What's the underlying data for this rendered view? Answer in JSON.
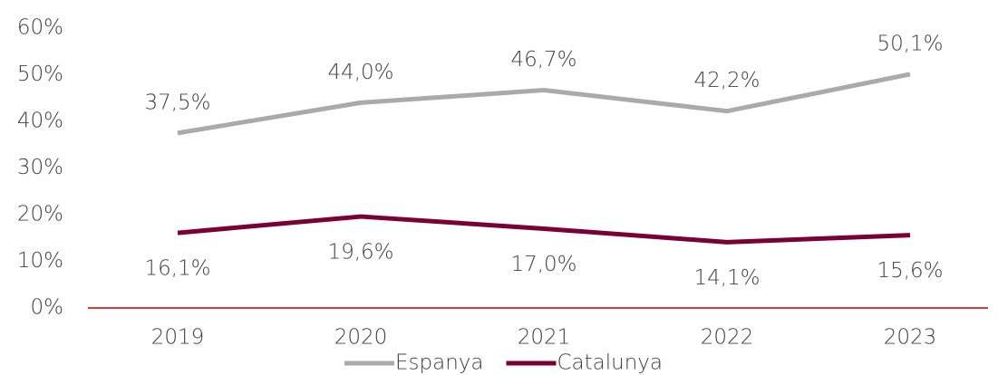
{
  "chart_data": {
    "type": "line",
    "categories": [
      "2019",
      "2020",
      "2021",
      "2022",
      "2023"
    ],
    "series": [
      {
        "name": "Espanya",
        "color": "#aaaaaa",
        "values": [
          37.5,
          44.0,
          46.7,
          42.2,
          50.1
        ],
        "value_labels": [
          "37,5%",
          "44,0%",
          "46,7%",
          "42,2%",
          "50,1%"
        ]
      },
      {
        "name": "Catalunya",
        "color": "#7a0035",
        "values": [
          16.1,
          19.6,
          17.0,
          14.1,
          15.6
        ],
        "value_labels": [
          "16,1%",
          "19,6%",
          "17,0%",
          "14,1%",
          "15,6%"
        ]
      }
    ],
    "ylim": [
      0,
      60
    ],
    "yticks": [
      {
        "value": 0,
        "label": "0%"
      },
      {
        "value": 10,
        "label": "10%"
      },
      {
        "value": 20,
        "label": "20%"
      },
      {
        "value": 30,
        "label": "30%"
      },
      {
        "value": 40,
        "label": "40%"
      },
      {
        "value": 50,
        "label": "50%"
      },
      {
        "value": 60,
        "label": "60%"
      }
    ],
    "axis_color": "#c00000",
    "legend": "bottom"
  }
}
